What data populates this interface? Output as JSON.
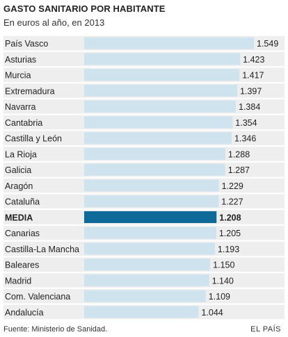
{
  "title": "GASTO SANITARIO POR HABITANTE",
  "subtitle": "En euros al año, en 2013",
  "source": "Fuente: Ministerio de Sanidad.",
  "brand": "EL PAÍS",
  "colors": {
    "bar": "#cfe3ee",
    "highlight_bar": "#0e6b99",
    "row_band": "#eeeeee",
    "text": "#222222"
  },
  "chart_data": {
    "type": "bar",
    "orientation": "horizontal",
    "title": "GASTO SANITARIO POR HABITANTE",
    "subtitle": "En euros al año, en 2013",
    "categories": [
      "País Vasco",
      "Asturias",
      "Murcia",
      "Extremadura",
      "Navarra",
      "Cantabria",
      "Castilla y León",
      "La Rioja",
      "Galicia",
      "Aragón",
      "Cataluña",
      "MEDIA",
      "Canarias",
      "Castilla-La Mancha",
      "Baleares",
      "Madrid",
      "Com. Valenciana",
      "Andalucía"
    ],
    "values": [
      1549,
      1423,
      1417,
      1397,
      1384,
      1354,
      1346,
      1288,
      1287,
      1229,
      1227,
      1208,
      1205,
      1193,
      1150,
      1140,
      1109,
      1044
    ],
    "labels": [
      "1.549",
      "1.423",
      "1.417",
      "1.397",
      "1.384",
      "1.354",
      "1.346",
      "1.288",
      "1.287",
      "1.229",
      "1.227",
      "1.208",
      "1.205",
      "1.193",
      "1.150",
      "1.140",
      "1.109",
      "1.044"
    ],
    "highlight": "MEDIA",
    "xlim": [
      0,
      1549
    ],
    "grid": false,
    "legend": "none"
  }
}
